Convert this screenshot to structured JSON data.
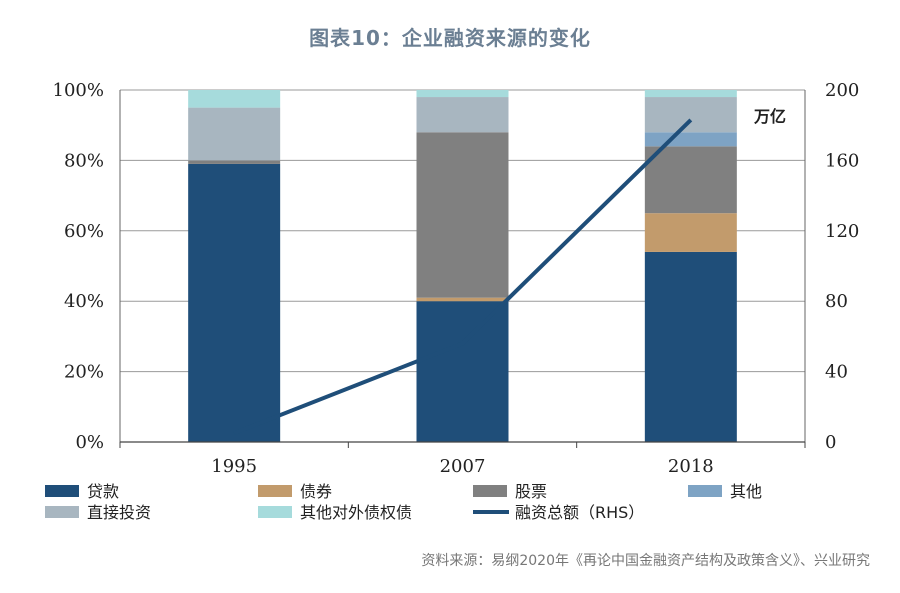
{
  "title": "图表10：企业融资来源的变化",
  "source": "资料来源：易纲2020年《再论中国金融资产结构及政策含义》、兴业研究",
  "chart_data": {
    "type": "bar",
    "stacked": true,
    "categories": [
      "1995",
      "2007",
      "2018"
    ],
    "series": [
      {
        "name": "贷款",
        "color": "#1f4e79",
        "values": [
          79,
          40,
          54
        ]
      },
      {
        "name": "债券",
        "color": "#c29b6c",
        "values": [
          0,
          1,
          11
        ]
      },
      {
        "name": "股票",
        "color": "#808080",
        "values": [
          1,
          47,
          19
        ]
      },
      {
        "name": "其他",
        "color": "#7ea3c4",
        "values": [
          0,
          0,
          4
        ]
      },
      {
        "name": "直接投资",
        "color": "#a8b6c0",
        "values": [
          15,
          10,
          10
        ]
      },
      {
        "name": "其他对外债权债",
        "color": "#a6dbdc",
        "values": [
          5,
          2,
          2
        ]
      }
    ],
    "line": {
      "name": "融资总额（RHS）",
      "color": "#1f4e79",
      "values": [
        5,
        56,
        183
      ],
      "axis": "right"
    },
    "y_left": {
      "ylim": [
        0,
        100
      ],
      "ticks": [
        "0%",
        "20%",
        "40%",
        "60%",
        "80%",
        "100%"
      ]
    },
    "y_right": {
      "ylim": [
        0,
        200
      ],
      "ticks": [
        "0",
        "40",
        "80",
        "120",
        "160",
        "200"
      ],
      "unit_label": "万亿"
    },
    "grid": true,
    "legend_position": "bottom"
  }
}
